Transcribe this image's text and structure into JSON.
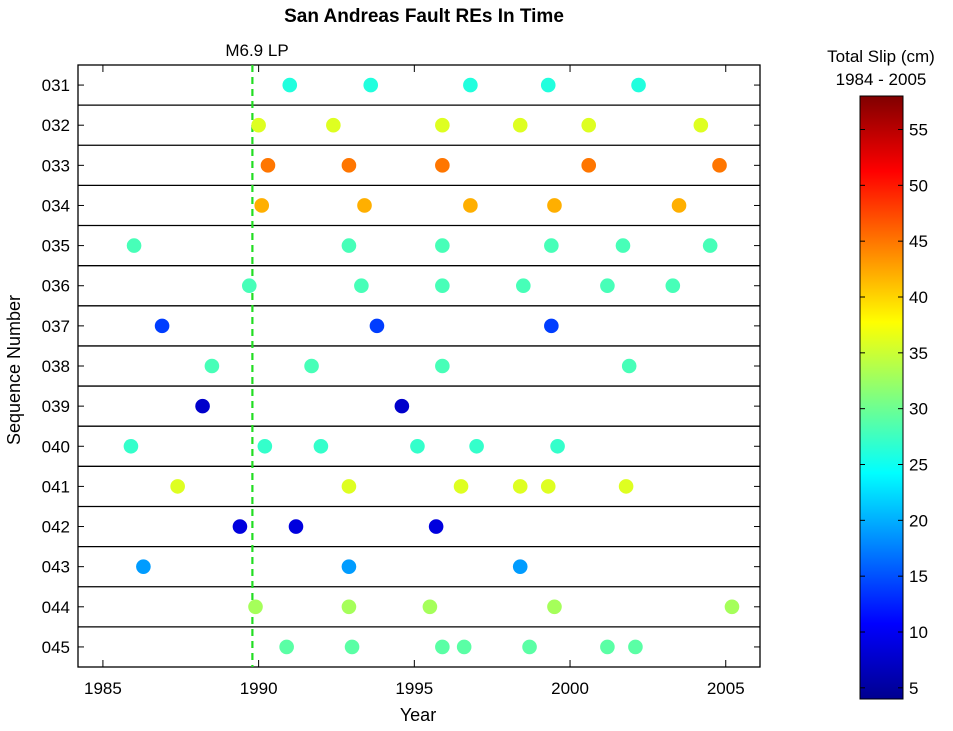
{
  "chart_data": {
    "type": "scatter",
    "title": "San Andreas Fault REs In Time",
    "xlabel": "Year",
    "ylabel": "Sequence Number",
    "xlim": [
      1984.2,
      2006.1
    ],
    "xticks": [
      1985,
      1990,
      1995,
      2000,
      2005
    ],
    "grid": false,
    "categories": [
      "031",
      "032",
      "033",
      "034",
      "035",
      "036",
      "037",
      "038",
      "039",
      "040",
      "041",
      "042",
      "043",
      "044",
      "045"
    ],
    "annotation": {
      "label": "M6.9 LP",
      "x": 1989.8,
      "line_color": "#22dd22",
      "line_style": "dashed"
    },
    "colorbar": {
      "label_lines": [
        "Total Slip (cm)",
        "1984 - 2005"
      ],
      "range": [
        4,
        58
      ],
      "ticks": [
        5,
        10,
        15,
        20,
        25,
        30,
        35,
        40,
        45,
        50,
        55
      ],
      "colormap": "jet"
    },
    "series": [
      {
        "sequence": "031",
        "slip_cm": 26,
        "x": [
          1991.0,
          1993.6,
          1996.8,
          1999.3,
          2002.2
        ]
      },
      {
        "sequence": "032",
        "slip_cm": 36,
        "x": [
          1990.0,
          1992.4,
          1995.9,
          1998.4,
          2000.6,
          2004.2
        ]
      },
      {
        "sequence": "033",
        "slip_cm": 45,
        "x": [
          1990.3,
          1992.9,
          1995.9,
          2000.6,
          2004.8
        ]
      },
      {
        "sequence": "034",
        "slip_cm": 42,
        "x": [
          1990.1,
          1993.4,
          1996.8,
          1999.5,
          2003.5
        ]
      },
      {
        "sequence": "035",
        "slip_cm": 28,
        "x": [
          1986.0,
          1992.9,
          1995.9,
          1999.4,
          2001.7,
          2004.5
        ]
      },
      {
        "sequence": "036",
        "slip_cm": 28,
        "x": [
          1989.7,
          1993.3,
          1995.9,
          1998.5,
          2001.2,
          2003.3
        ]
      },
      {
        "sequence": "037",
        "slip_cm": 14,
        "x": [
          1986.9,
          1993.8,
          1999.4
        ]
      },
      {
        "sequence": "038",
        "slip_cm": 28,
        "x": [
          1988.5,
          1991.7,
          1995.9,
          2001.9
        ]
      },
      {
        "sequence": "039",
        "slip_cm": 8,
        "x": [
          1988.2,
          1994.6
        ]
      },
      {
        "sequence": "040",
        "slip_cm": 27,
        "x": [
          1985.9,
          1990.2,
          1992.0,
          1995.1,
          1997.0,
          1999.6
        ]
      },
      {
        "sequence": "041",
        "slip_cm": 36,
        "x": [
          1987.4,
          1992.9,
          1996.5,
          1998.4,
          1999.3,
          2001.8
        ]
      },
      {
        "sequence": "042",
        "slip_cm": 9,
        "x": [
          1989.4,
          1991.2,
          1995.7
        ]
      },
      {
        "sequence": "043",
        "slip_cm": 19,
        "x": [
          1986.3,
          1992.9,
          1998.4
        ]
      },
      {
        "sequence": "044",
        "slip_cm": 33,
        "x": [
          1989.9,
          1992.9,
          1995.5,
          1999.5,
          2005.2
        ]
      },
      {
        "sequence": "045",
        "slip_cm": 29,
        "x": [
          1990.9,
          1993.0,
          1995.9,
          1996.6,
          1998.7,
          2001.2,
          2002.1
        ]
      }
    ]
  }
}
